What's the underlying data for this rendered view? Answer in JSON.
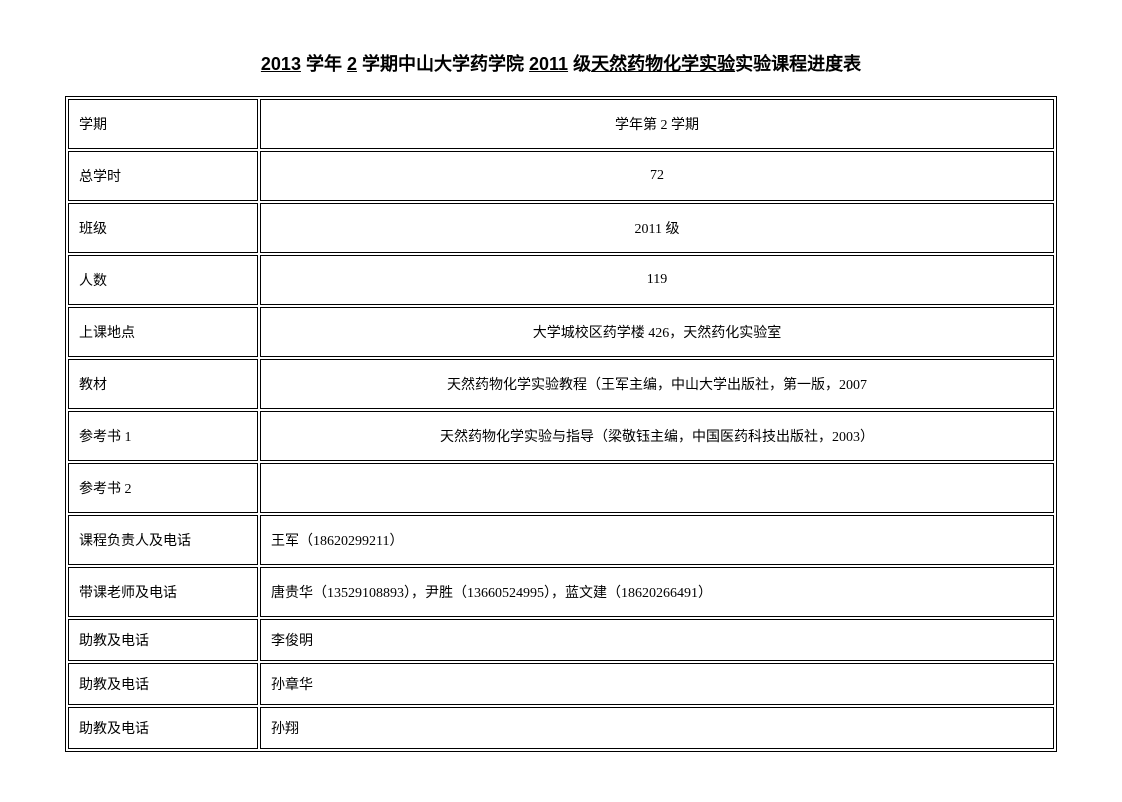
{
  "title": {
    "year": "2013",
    "text1": " 学年 ",
    "semester": "2",
    "text2": " 学期中山大学药学院 ",
    "grade": "2011",
    "text3": " 级",
    "course": "天然药物化学实验",
    "text4": "实验课程进度表"
  },
  "table": {
    "rows": [
      {
        "label": "学期",
        "value": "学年第 2 学期",
        "align": "center",
        "height": "normal"
      },
      {
        "label": "总学时",
        "value": "72",
        "align": "center",
        "height": "normal"
      },
      {
        "label": "班级",
        "value": "2011 级",
        "align": "center",
        "height": "normal"
      },
      {
        "label": "人数",
        "value": "119",
        "align": "center",
        "height": "normal"
      },
      {
        "label": "上课地点",
        "value": "大学城校区药学楼 426，天然药化实验室",
        "align": "center",
        "height": "normal"
      },
      {
        "label": "教材",
        "value": "天然药物化学实验教程（王军主编，中山大学出版社，第一版，2007",
        "align": "center",
        "height": "normal"
      },
      {
        "label": "参考书 1",
        "value": "天然药物化学实验与指导（梁敬钰主编，中国医药科技出版社，2003）",
        "align": "center",
        "height": "normal"
      },
      {
        "label": "参考书 2",
        "value": "",
        "align": "center",
        "height": "normal"
      },
      {
        "label": "课程负责人及电话",
        "value": "王军（18620299211）",
        "align": "left",
        "height": "normal"
      },
      {
        "label": "带课老师及电话",
        "value": "唐贵华（13529108893），尹胜（13660524995），蓝文建（18620266491）",
        "align": "left",
        "height": "normal"
      },
      {
        "label": "助教及电话",
        "value": "李俊明",
        "align": "left",
        "height": "short"
      },
      {
        "label": "助教及电话",
        "value": "孙章华",
        "align": "left",
        "height": "short"
      },
      {
        "label": "助教及电话",
        "value": "孙翔",
        "align": "left",
        "height": "short"
      }
    ]
  },
  "colors": {
    "background": "#ffffff",
    "border": "#000000",
    "text": "#000000"
  }
}
